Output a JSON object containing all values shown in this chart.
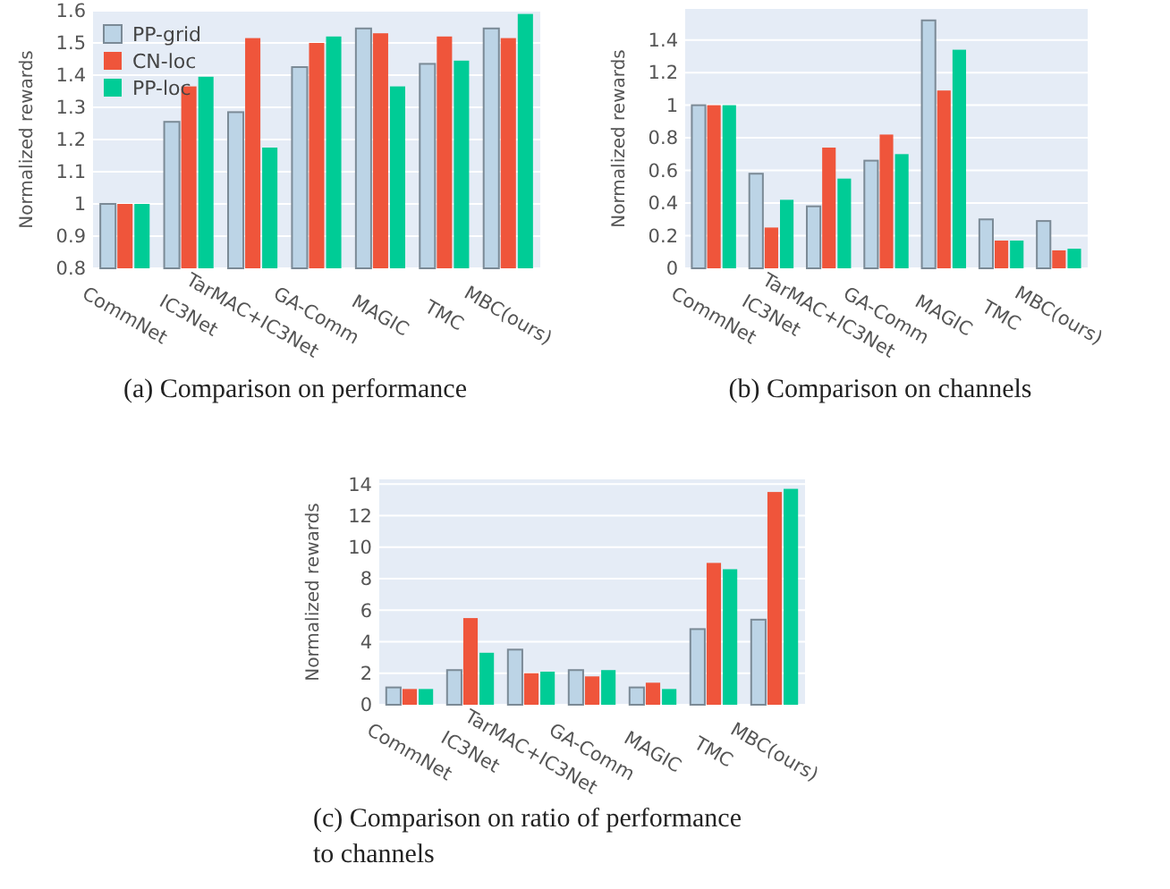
{
  "chart_data": [
    {
      "type": "bar",
      "ylabel": "Normalized rewards",
      "categories": [
        "CommNet",
        "IC3Net",
        "TarMAC+IC3Net",
        "GA-Comm",
        "MAGIC",
        "TMC",
        "MBC(ours)"
      ],
      "ylim": [
        0.8,
        1.6
      ],
      "yticks": [
        0.8,
        0.9,
        1,
        1.1,
        1.2,
        1.3,
        1.4,
        1.5,
        1.6
      ],
      "grid": "y",
      "legend": "top left",
      "annotations": [
        "(a)  Comparison on performance"
      ],
      "series": [
        {
          "name": "PP-grid",
          "color": "#bcd4e6",
          "values": [
            1,
            1.255,
            1.285,
            1.425,
            1.545,
            1.435,
            1.545
          ]
        },
        {
          "name": "CN-loc",
          "color": "#ef553b",
          "values": [
            1,
            1.365,
            1.515,
            1.5,
            1.53,
            1.52,
            1.515
          ]
        },
        {
          "name": "PP-loc",
          "color": "#00cc96",
          "values": [
            1,
            1.395,
            1.175,
            1.52,
            1.365,
            1.445,
            1.59
          ]
        }
      ]
    },
    {
      "type": "bar",
      "ylabel": "Normalized rewards",
      "categories": [
        "CommNet",
        "IC3Net",
        "TarMAC+IC3Net",
        "GA-Comm",
        "MAGIC",
        "TMC",
        "MBC(ours)"
      ],
      "ylim": [
        0,
        1.59
      ],
      "yticks": [
        0,
        0.2,
        0.4,
        0.6,
        0.8,
        1,
        1.2,
        1.4
      ],
      "grid": "y",
      "annotations": [
        "(b)  Comparison on channels"
      ],
      "series": [
        {
          "color": "#bcd4e6",
          "values": [
            1,
            0.58,
            0.38,
            0.66,
            1.52,
            0.3,
            0.29
          ]
        },
        {
          "color": "#ef553b",
          "values": [
            1,
            0.25,
            0.74,
            0.82,
            1.09,
            0.17,
            0.11
          ]
        },
        {
          "color": "#00cc96",
          "values": [
            1,
            0.42,
            0.55,
            0.7,
            1.34,
            0.17,
            0.12
          ]
        }
      ]
    },
    {
      "type": "bar",
      "ylabel": "Normalized rewards",
      "categories": [
        "CommNet",
        "IC3Net",
        "TarMAC+IC3Net",
        "GA-Comm",
        "MAGIC",
        "TMC",
        "MBC(ours)"
      ],
      "ylim": [
        0,
        14.3
      ],
      "yticks": [
        0,
        2,
        4,
        6,
        8,
        10,
        12,
        14
      ],
      "grid": "y",
      "annotations": [
        "(c)  Comparison on ratio of performance to channels"
      ],
      "series": [
        {
          "color": "#bcd4e6",
          "values": [
            1.1,
            2.2,
            3.5,
            2.2,
            1.1,
            4.8,
            5.4
          ]
        },
        {
          "color": "#ef553b",
          "values": [
            1,
            5.5,
            2.0,
            1.8,
            1.4,
            9.0,
            13.5
          ]
        },
        {
          "color": "#00cc96",
          "values": [
            1,
            3.3,
            2.1,
            2.2,
            1.0,
            8.6,
            13.7
          ]
        }
      ]
    }
  ]
}
